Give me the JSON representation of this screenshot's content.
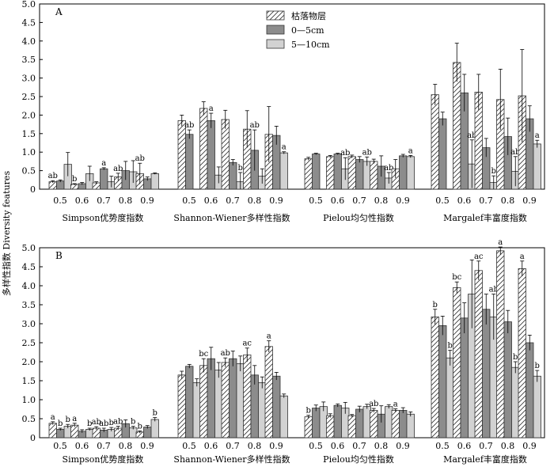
{
  "y_axis_label": "多样性指数 Diversity features",
  "legend": [
    {
      "label": "枯落物层",
      "style": "hatch"
    },
    {
      "label": "0—5cm",
      "style": "dark"
    },
    {
      "label": "5—10cm",
      "style": "light"
    }
  ],
  "colors": {
    "dark": "#8c8c8c",
    "light": "#d2d2d2",
    "hatch_fill": "#ffffff"
  },
  "chart_data": [
    {
      "type": "bar",
      "panel": "A",
      "ylim": [
        0,
        5
      ],
      "yticks": [
        "0",
        "0.5",
        "1.0",
        "1.5",
        "2.0",
        "2.5",
        "3.0",
        "3.5",
        "4.0",
        "4.5",
        "5.0"
      ],
      "series_names": [
        "枯落物层",
        "0—5cm",
        "5—10cm"
      ],
      "groups": [
        {
          "name": "Simpson优势度指数",
          "x": [
            "0.5",
            "0.6",
            "0.7",
            "0.8",
            "0.9"
          ],
          "values": [
            [
              0.2,
              0.22,
              0.67
            ],
            [
              0.13,
              0.15,
              0.42
            ],
            [
              0.17,
              0.55,
              0.2
            ],
            [
              0.33,
              0.5,
              0.47
            ],
            [
              0.42,
              0.28,
              0.42
            ]
          ],
          "errors": [
            [
              0.03,
              0.03,
              0.32
            ],
            [
              0.02,
              0.03,
              0.2
            ],
            [
              0.03,
              0.03,
              0.15
            ],
            [
              0.1,
              0.25,
              0.3
            ],
            [
              0.28,
              0.05,
              0.02
            ]
          ],
          "letters": [
            [
              "ab",
              "",
              ""
            ],
            [
              "b",
              "",
              ""
            ],
            [
              "",
              "a",
              ""
            ],
            [
              "ab",
              "",
              ""
            ],
            [
              "ab",
              "",
              ""
            ]
          ]
        },
        {
          "name": "Shannon-Wiener多样性指数",
          "x": [
            "0.5",
            "0.6",
            "0.7",
            "0.8",
            "0.9"
          ],
          "values": [
            [
              1.85,
              1.48,
              0
            ],
            [
              2.18,
              1.85,
              0.38
            ],
            [
              1.88,
              0.72,
              0.2
            ],
            [
              1.62,
              1.05,
              0.35
            ],
            [
              1.48,
              1.45,
              0.98
            ]
          ],
          "errors": [
            [
              0.15,
              0.12,
              0
            ],
            [
              0.18,
              0.2,
              0.22
            ],
            [
              0.25,
              0.08,
              0.25
            ],
            [
              0.5,
              0.55,
              0.2
            ],
            [
              0.75,
              0.25,
              0.03
            ]
          ],
          "letters": [
            [
              "",
              "ab",
              ""
            ],
            [
              "",
              "a",
              ""
            ],
            [
              "",
              "",
              "b"
            ],
            [
              "",
              "ab",
              ""
            ],
            [
              "",
              "",
              "a"
            ]
          ]
        },
        {
          "name": "Pielou均匀性指数",
          "x": [
            "0.5",
            "0.6",
            "0.7",
            "0.8",
            "0.9"
          ],
          "values": [
            [
              0.82,
              0.95,
              0
            ],
            [
              0.88,
              0.95,
              0.55
            ],
            [
              0.88,
              0.8,
              0.75
            ],
            [
              0.75,
              0.62,
              0.3
            ],
            [
              0.55,
              0.9,
              0.88
            ]
          ],
          "errors": [
            [
              0.04,
              0.02,
              0
            ],
            [
              0.03,
              0.02,
              0.3
            ],
            [
              0.04,
              0.08,
              0.12
            ],
            [
              0.06,
              0.28,
              0.15
            ],
            [
              0.25,
              0.04,
              0.03
            ]
          ],
          "letters": [
            [
              "",
              "",
              ""
            ],
            [
              "",
              "",
              "ab"
            ],
            [
              "",
              "",
              "ab"
            ],
            [
              "",
              "",
              "ab"
            ],
            [
              "",
              "",
              "a"
            ]
          ]
        },
        {
          "name": "Margalef丰富度指数",
          "x": [
            "0.5",
            "0.6",
            "0.7",
            "0.8",
            "0.9"
          ],
          "values": [
            [
              2.55,
              1.9,
              0
            ],
            [
              3.42,
              2.6,
              0.68
            ],
            [
              2.62,
              1.12,
              0.18
            ],
            [
              2.42,
              1.42,
              0.48
            ],
            [
              2.52,
              1.9,
              1.22
            ]
          ],
          "errors": [
            [
              0.28,
              0.18,
              0
            ],
            [
              0.52,
              0.5,
              0.65
            ],
            [
              0.48,
              0.25,
              0.18
            ],
            [
              0.82,
              0.5,
              0.4
            ],
            [
              1.25,
              0.35,
              0.1
            ]
          ],
          "letters": [
            [
              "",
              "",
              ""
            ],
            [
              "",
              "",
              "ab"
            ],
            [
              "",
              "",
              "b"
            ],
            [
              "",
              "",
              "ab"
            ],
            [
              "",
              "",
              "a"
            ]
          ]
        }
      ]
    },
    {
      "type": "bar",
      "panel": "B",
      "ylim": [
        0,
        5
      ],
      "yticks": [
        "0",
        "0.5",
        "1.0",
        "1.5",
        "2.0",
        "2.5",
        "3.0",
        "3.5",
        "4.0",
        "4.5",
        "5.0"
      ],
      "series_names": [
        "枯落物层",
        "0—5cm",
        "5—10cm"
      ],
      "groups": [
        {
          "name": "Simpson优势度指数",
          "x": [
            "0.5",
            "0.6",
            "0.7",
            "0.8",
            "0.9"
          ],
          "values": [
            [
              0.38,
              0.22,
              0.3
            ],
            [
              0.33,
              0.17,
              0.22
            ],
            [
              0.25,
              0.2,
              0.22
            ],
            [
              0.25,
              0.37,
              0.26
            ],
            [
              0.15,
              0.28,
              0.48
            ]
          ],
          "errors": [
            [
              0.04,
              0.03,
              0.05
            ],
            [
              0.05,
              0.04,
              0.03
            ],
            [
              0.04,
              0.05,
              0.05
            ],
            [
              0.05,
              0.1,
              0.04
            ],
            [
              0.03,
              0.04,
              0.05
            ]
          ],
          "letters": [
            [
              "a",
              "b",
              "b"
            ],
            [
              "a",
              "",
              "b"
            ],
            [
              "ab",
              "ab",
              "b"
            ],
            [
              "ab",
              "",
              "b"
            ],
            [
              "b",
              "",
              "b"
            ]
          ]
        },
        {
          "name": "Shannon-Wiener多样性指数",
          "x": [
            "0.5",
            "0.6",
            "0.7",
            "0.8",
            "0.9"
          ],
          "values": [
            [
              1.65,
              1.88,
              1.45
            ],
            [
              1.9,
              2.08,
              1.78
            ],
            [
              1.98,
              2.08,
              1.95
            ],
            [
              2.18,
              1.65,
              1.45
            ],
            [
              2.4,
              1.62,
              1.1
            ]
          ],
          "errors": [
            [
              0.1,
              0.05,
              0.1
            ],
            [
              0.18,
              0.3,
              0.2
            ],
            [
              0.12,
              0.2,
              0.2
            ],
            [
              0.18,
              0.25,
              0.15
            ],
            [
              0.15,
              0.1,
              0.05
            ]
          ],
          "letters": [
            [
              "",
              "",
              ""
            ],
            [
              "bc",
              "",
              ""
            ],
            [
              "ab",
              "",
              ""
            ],
            [
              "ac",
              "",
              ""
            ],
            [
              "a",
              "",
              ""
            ]
          ]
        },
        {
          "name": "Pielou均匀性指数",
          "x": [
            "0.5",
            "0.6",
            "0.7",
            "0.8",
            "0.9"
          ],
          "values": [
            [
              0.55,
              0.78,
              0.82
            ],
            [
              0.58,
              0.85,
              0.78
            ],
            [
              0.58,
              0.75,
              0.82
            ],
            [
              0.72,
              0.62,
              0.82
            ],
            [
              0.72,
              0.72,
              0.62
            ]
          ],
          "errors": [
            [
              0.04,
              0.08,
              0.12
            ],
            [
              0.05,
              0.04,
              0.15
            ],
            [
              0.03,
              0.08,
              0.06
            ],
            [
              0.05,
              0.22,
              0.05
            ],
            [
              0.04,
              0.07,
              0.06
            ]
          ],
          "letters": [
            [
              "b",
              "",
              ""
            ],
            [
              "",
              "",
              ""
            ],
            [
              "",
              "",
              ""
            ],
            [
              "ab",
              "",
              ""
            ],
            [
              "a",
              "",
              ""
            ]
          ]
        },
        {
          "name": "Margalef丰富度指数",
          "x": [
            "0.5",
            "0.6",
            "0.7",
            "0.8",
            "0.9"
          ],
          "values": [
            [
              3.18,
              2.95,
              2.1
            ],
            [
              3.95,
              3.15,
              3.78
            ],
            [
              4.4,
              3.38,
              3.18
            ],
            [
              4.92,
              3.05,
              1.85
            ],
            [
              4.45,
              2.5,
              1.62
            ]
          ],
          "errors": [
            [
              0.2,
              0.25,
              0.2
            ],
            [
              0.15,
              0.4,
              0.9
            ],
            [
              0.25,
              0.4,
              0.6
            ],
            [
              0.1,
              0.3,
              0.15
            ],
            [
              0.2,
              0.2,
              0.15
            ]
          ],
          "letters": [
            [
              "b",
              "",
              "b"
            ],
            [
              "bc",
              "",
              ""
            ],
            [
              "ac",
              "",
              "ab"
            ],
            [
              "a",
              "",
              "b"
            ],
            [
              "a",
              "",
              "b"
            ]
          ]
        }
      ]
    }
  ]
}
